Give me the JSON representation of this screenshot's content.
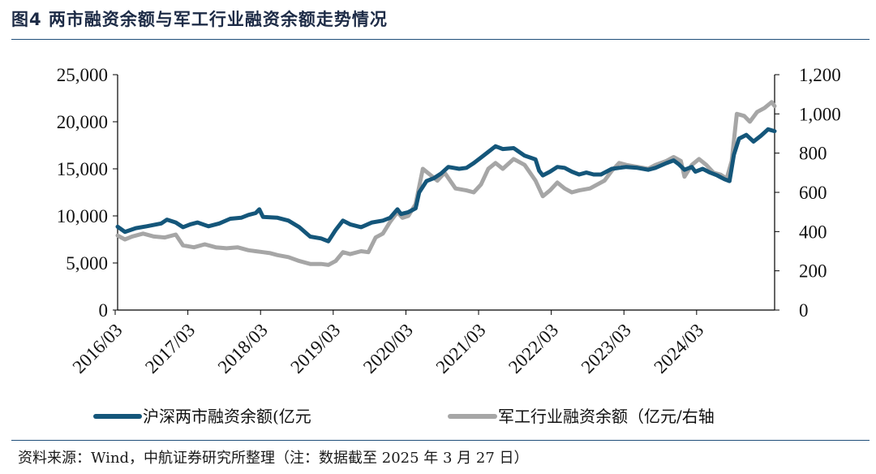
{
  "figure": {
    "title": "图4  两市融资余额与军工行业融资余额走势情况",
    "source": "资料来源：Wind，中航证券研究所整理（注：数据截至 2025 年 3 月 27 日）"
  },
  "chart_data": {
    "type": "line",
    "x_tick_labels": [
      "2016/03",
      "2017/03",
      "2018/03",
      "2019/03",
      "2020/03",
      "2021/03",
      "2022/03",
      "2023/03",
      "2024/03"
    ],
    "x_range": [
      2016.2,
      2025.24
    ],
    "y_left": {
      "range": [
        0,
        25000
      ],
      "ticks": [
        0,
        5000,
        10000,
        15000,
        20000,
        25000
      ],
      "tick_labels": [
        "0",
        "5,000",
        "10,000",
        "15,000",
        "20,000",
        "25,000"
      ]
    },
    "y_right": {
      "range": [
        0,
        1200
      ],
      "ticks": [
        0,
        200,
        400,
        600,
        800,
        1000,
        1200
      ],
      "tick_labels": [
        "0",
        "200",
        "400",
        "600",
        "800",
        "1,000",
        "1,200"
      ]
    },
    "grid": false,
    "legend_position": "bottom",
    "series": [
      {
        "name": "沪深两市融资余额(亿元",
        "axis": "left",
        "color": "#14567a",
        "points": [
          [
            2016.2,
            8850
          ],
          [
            2016.3,
            8300
          ],
          [
            2016.45,
            8700
          ],
          [
            2016.6,
            8900
          ],
          [
            2016.8,
            9200
          ],
          [
            2016.88,
            9600
          ],
          [
            2017.0,
            9300
          ],
          [
            2017.1,
            8800
          ],
          [
            2017.2,
            9100
          ],
          [
            2017.3,
            9300
          ],
          [
            2017.45,
            8900
          ],
          [
            2017.6,
            9200
          ],
          [
            2017.75,
            9700
          ],
          [
            2017.9,
            9800
          ],
          [
            2018.0,
            10100
          ],
          [
            2018.1,
            10300
          ],
          [
            2018.15,
            10700
          ],
          [
            2018.2,
            9900
          ],
          [
            2018.4,
            9800
          ],
          [
            2018.55,
            9500
          ],
          [
            2018.7,
            8800
          ],
          [
            2018.85,
            7800
          ],
          [
            2019.0,
            7600
          ],
          [
            2019.1,
            7300
          ],
          [
            2019.2,
            8500
          ],
          [
            2019.3,
            9500
          ],
          [
            2019.4,
            9100
          ],
          [
            2019.55,
            8800
          ],
          [
            2019.7,
            9300
          ],
          [
            2019.85,
            9500
          ],
          [
            2019.95,
            9800
          ],
          [
            2020.05,
            10700
          ],
          [
            2020.1,
            10200
          ],
          [
            2020.2,
            10400
          ],
          [
            2020.3,
            10800
          ],
          [
            2020.35,
            12500
          ],
          [
            2020.45,
            13700
          ],
          [
            2020.55,
            14000
          ],
          [
            2020.65,
            14500
          ],
          [
            2020.75,
            15200
          ],
          [
            2020.9,
            15000
          ],
          [
            2021.0,
            15100
          ],
          [
            2021.1,
            15600
          ],
          [
            2021.2,
            16200
          ],
          [
            2021.3,
            16800
          ],
          [
            2021.4,
            17400
          ],
          [
            2021.5,
            17100
          ],
          [
            2021.65,
            17200
          ],
          [
            2021.8,
            16400
          ],
          [
            2021.95,
            16000
          ],
          [
            2022.0,
            14800
          ],
          [
            2022.05,
            14300
          ],
          [
            2022.15,
            14700
          ],
          [
            2022.25,
            15200
          ],
          [
            2022.35,
            15100
          ],
          [
            2022.45,
            14700
          ],
          [
            2022.55,
            14400
          ],
          [
            2022.65,
            14600
          ],
          [
            2022.75,
            14400
          ],
          [
            2022.85,
            14400
          ],
          [
            2023.0,
            15000
          ],
          [
            2023.1,
            15100
          ],
          [
            2023.2,
            15200
          ],
          [
            2023.35,
            15100
          ],
          [
            2023.5,
            14900
          ],
          [
            2023.6,
            15100
          ],
          [
            2023.75,
            15600
          ],
          [
            2023.85,
            15900
          ],
          [
            2023.92,
            15500
          ],
          [
            2024.0,
            14900
          ],
          [
            2024.1,
            15200
          ],
          [
            2024.15,
            14700
          ],
          [
            2024.25,
            15000
          ],
          [
            2024.35,
            14600
          ],
          [
            2024.45,
            14300
          ],
          [
            2024.55,
            13900
          ],
          [
            2024.62,
            13700
          ],
          [
            2024.68,
            16500
          ],
          [
            2024.75,
            18200
          ],
          [
            2024.85,
            18600
          ],
          [
            2024.95,
            17900
          ],
          [
            2025.05,
            18500
          ],
          [
            2025.15,
            19200
          ],
          [
            2025.24,
            19000
          ]
        ]
      },
      {
        "name": "军工行业融资余额（亿元/右轴",
        "axis": "right",
        "color": "#a6a6a6",
        "points": [
          [
            2016.2,
            380
          ],
          [
            2016.3,
            360
          ],
          [
            2016.4,
            375
          ],
          [
            2016.55,
            390
          ],
          [
            2016.7,
            375
          ],
          [
            2016.85,
            370
          ],
          [
            2017.0,
            385
          ],
          [
            2017.1,
            330
          ],
          [
            2017.25,
            320
          ],
          [
            2017.4,
            335
          ],
          [
            2017.55,
            320
          ],
          [
            2017.7,
            315
          ],
          [
            2017.85,
            320
          ],
          [
            2018.0,
            305
          ],
          [
            2018.1,
            300
          ],
          [
            2018.2,
            295
          ],
          [
            2018.3,
            290
          ],
          [
            2018.4,
            280
          ],
          [
            2018.55,
            270
          ],
          [
            2018.7,
            250
          ],
          [
            2018.85,
            235
          ],
          [
            2019.0,
            235
          ],
          [
            2019.1,
            230
          ],
          [
            2019.2,
            250
          ],
          [
            2019.3,
            295
          ],
          [
            2019.4,
            285
          ],
          [
            2019.55,
            300
          ],
          [
            2019.65,
            295
          ],
          [
            2019.75,
            370
          ],
          [
            2019.85,
            390
          ],
          [
            2019.95,
            450
          ],
          [
            2020.05,
            500
          ],
          [
            2020.12,
            470
          ],
          [
            2020.2,
            480
          ],
          [
            2020.3,
            540
          ],
          [
            2020.4,
            720
          ],
          [
            2020.5,
            690
          ],
          [
            2020.6,
            660
          ],
          [
            2020.7,
            700
          ],
          [
            2020.85,
            620
          ],
          [
            2021.0,
            610
          ],
          [
            2021.1,
            600
          ],
          [
            2021.2,
            640
          ],
          [
            2021.3,
            720
          ],
          [
            2021.4,
            750
          ],
          [
            2021.5,
            720
          ],
          [
            2021.65,
            770
          ],
          [
            2021.8,
            740
          ],
          [
            2021.95,
            660
          ],
          [
            2022.05,
            580
          ],
          [
            2022.15,
            610
          ],
          [
            2022.25,
            650
          ],
          [
            2022.35,
            620
          ],
          [
            2022.45,
            600
          ],
          [
            2022.55,
            610
          ],
          [
            2022.7,
            620
          ],
          [
            2022.8,
            640
          ],
          [
            2022.9,
            660
          ],
          [
            2023.0,
            710
          ],
          [
            2023.1,
            750
          ],
          [
            2023.2,
            740
          ],
          [
            2023.35,
            730
          ],
          [
            2023.5,
            720
          ],
          [
            2023.6,
            740
          ],
          [
            2023.75,
            760
          ],
          [
            2023.85,
            780
          ],
          [
            2023.95,
            760
          ],
          [
            2024.0,
            680
          ],
          [
            2024.1,
            740
          ],
          [
            2024.2,
            770
          ],
          [
            2024.3,
            740
          ],
          [
            2024.4,
            700
          ],
          [
            2024.5,
            690
          ],
          [
            2024.58,
            670
          ],
          [
            2024.65,
            760
          ],
          [
            2024.72,
            1000
          ],
          [
            2024.82,
            990
          ],
          [
            2024.9,
            960
          ],
          [
            2025.0,
            1010
          ],
          [
            2025.1,
            1030
          ],
          [
            2025.2,
            1060
          ],
          [
            2025.24,
            1040
          ]
        ]
      }
    ]
  }
}
